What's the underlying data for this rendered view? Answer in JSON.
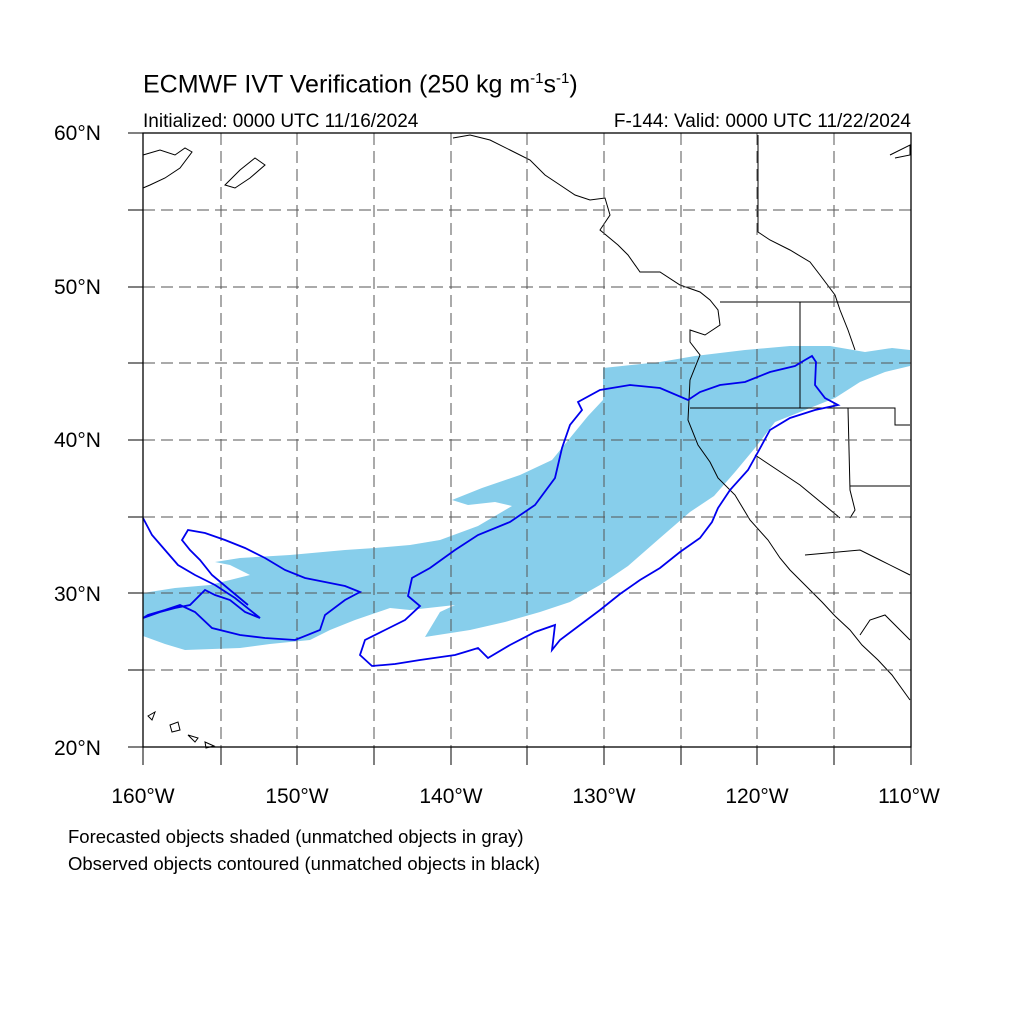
{
  "title": {
    "prefix": "ECMWF IVT Verification (250 kg m",
    "exp1": "-1",
    "mid": "s",
    "exp2": "-1",
    "suffix": ")"
  },
  "initialized": "Initialized: 0000 UTC 11/16/2024",
  "valid": "F-144: Valid: 0000 UTC 11/22/2024",
  "lat_labels": [
    "60°N",
    "50°N",
    "40°N",
    "30°N",
    "20°N"
  ],
  "lon_labels": [
    "160°W",
    "150°W",
    "140°W",
    "130°W",
    "120°W",
    "110°W"
  ],
  "captions": [
    "Forecasted objects shaded (unmatched objects in gray)",
    "Observed objects contoured (unmatched objects in black)"
  ],
  "colors": {
    "forecast_fill": "#87ceeb",
    "observed_contour": "#0000ee",
    "coastline": "#000000",
    "grid": "#555555"
  },
  "map_extent": {
    "lon": [
      -160,
      -110
    ],
    "lat": [
      20,
      60
    ]
  }
}
